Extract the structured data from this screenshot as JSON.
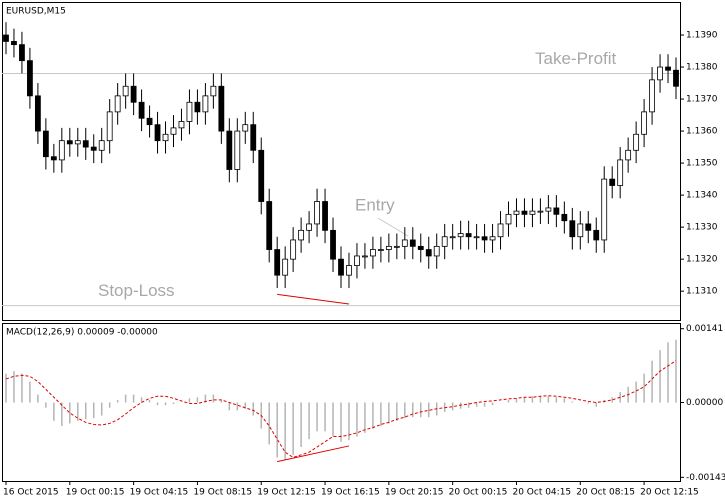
{
  "chart_data": [
    {
      "type": "candlestick",
      "title": "EURUSD,M15",
      "categories": [
        "16 Oct 2015",
        null,
        null,
        null,
        null,
        null,
        null,
        null,
        "19 Oct 00:15",
        null,
        null,
        null,
        null,
        null,
        null,
        null,
        "19 Oct 04:15",
        null,
        null,
        null,
        null,
        null,
        null,
        null,
        "19 Oct 08:15",
        null,
        null,
        null,
        null,
        null,
        null,
        null,
        "19 Oct 12:15",
        null,
        null,
        null,
        null,
        null,
        null,
        null,
        "19 Oct 16:15",
        null,
        null,
        null,
        null,
        null,
        null,
        null,
        "19 Oct 20:15",
        null,
        null,
        null,
        null,
        null,
        null,
        null,
        "20 Oct 00:15",
        null,
        null,
        null,
        null,
        null,
        null,
        null,
        "20 Oct 04:15",
        null,
        null,
        null,
        null,
        null,
        null,
        null,
        "20 Oct 08:15",
        null,
        null,
        null,
        null,
        null,
        null,
        null,
        "20 Oct 12:15",
        null,
        null,
        null,
        null
      ],
      "open": [
        1.139,
        1.1388,
        1.1387,
        1.1382,
        1.1371,
        1.136,
        1.1352,
        1.1351,
        1.1357,
        1.1356,
        1.1357,
        1.1355,
        1.1354,
        1.1357,
        1.1366,
        1.1371,
        1.1374,
        1.1369,
        1.1364,
        1.1362,
        1.1357,
        1.1359,
        1.1361,
        1.1363,
        1.1369,
        1.1366,
        1.1371,
        1.1374,
        1.136,
        1.1348,
        1.136,
        1.1362,
        1.1354,
        1.1338,
        1.1323,
        1.1315,
        1.132,
        1.1326,
        1.1329,
        1.1331,
        1.1338,
        1.1329,
        1.132,
        1.1315,
        1.1318,
        1.1321,
        1.1321,
        1.1323,
        1.1323,
        1.1324,
        1.1324,
        1.1326,
        1.1324,
        1.1323,
        1.1321,
        1.1324,
        1.1327,
        1.1327,
        1.1328,
        1.1327,
        1.1327,
        1.1326,
        1.1327,
        1.1331,
        1.1334,
        1.1335,
        1.1334,
        1.1335,
        1.1335,
        1.1336,
        1.1334,
        1.1332,
        1.1327,
        1.1331,
        1.1329,
        1.1326,
        1.1345,
        1.1343,
        1.1351,
        1.1354,
        1.1359,
        1.1366,
        1.1376,
        1.138,
        1.1379
      ],
      "high": [
        1.1394,
        1.1392,
        1.1391,
        1.1386,
        1.1375,
        1.1364,
        1.1356,
        1.1361,
        1.1361,
        1.1361,
        1.1361,
        1.1359,
        1.1361,
        1.137,
        1.1375,
        1.1378,
        1.1378,
        1.1373,
        1.1368,
        1.1366,
        1.1363,
        1.1365,
        1.1367,
        1.1373,
        1.1373,
        1.1375,
        1.1378,
        1.1378,
        1.1364,
        1.1364,
        1.1366,
        1.1366,
        1.1358,
        1.1342,
        1.1327,
        1.1324,
        1.133,
        1.1333,
        1.1335,
        1.1342,
        1.1342,
        1.1333,
        1.1324,
        1.1322,
        1.1325,
        1.1325,
        1.1327,
        1.1327,
        1.1328,
        1.1328,
        1.133,
        1.133,
        1.1328,
        1.1327,
        1.1328,
        1.1331,
        1.1331,
        1.1332,
        1.1332,
        1.1331,
        1.1331,
        1.1331,
        1.1335,
        1.1338,
        1.1339,
        1.1339,
        1.1339,
        1.1339,
        1.134,
        1.134,
        1.1338,
        1.1336,
        1.1335,
        1.1335,
        1.1333,
        1.1349,
        1.1349,
        1.1355,
        1.1358,
        1.1363,
        1.137,
        1.138,
        1.1384,
        1.1384,
        1.1383
      ],
      "low": [
        1.1384,
        1.1383,
        1.1378,
        1.1367,
        1.1356,
        1.1348,
        1.1347,
        1.1347,
        1.1352,
        1.1352,
        1.1351,
        1.135,
        1.135,
        1.1353,
        1.1362,
        1.1367,
        1.1365,
        1.136,
        1.1358,
        1.1353,
        1.1353,
        1.1355,
        1.1357,
        1.1359,
        1.1362,
        1.1362,
        1.1367,
        1.1356,
        1.1344,
        1.1344,
        1.1356,
        1.135,
        1.1334,
        1.1319,
        1.1311,
        1.1311,
        1.1316,
        1.1322,
        1.1325,
        1.1327,
        1.1325,
        1.1316,
        1.1311,
        1.1311,
        1.1314,
        1.1317,
        1.1317,
        1.1319,
        1.1319,
        1.132,
        1.132,
        1.132,
        1.1319,
        1.1317,
        1.1317,
        1.132,
        1.1323,
        1.1323,
        1.1323,
        1.1323,
        1.1322,
        1.1322,
        1.1323,
        1.1327,
        1.133,
        1.133,
        1.133,
        1.1331,
        1.1331,
        1.133,
        1.1328,
        1.1323,
        1.1323,
        1.1325,
        1.1322,
        1.1322,
        1.1339,
        1.1339,
        1.1347,
        1.135,
        1.1355,
        1.1362,
        1.1372,
        1.1375,
        1.137
      ],
      "close": [
        1.1388,
        1.1387,
        1.1382,
        1.1371,
        1.136,
        1.1352,
        1.1351,
        1.1357,
        1.1356,
        1.1357,
        1.1355,
        1.1354,
        1.1357,
        1.1366,
        1.1371,
        1.1374,
        1.1369,
        1.1364,
        1.1362,
        1.1357,
        1.1359,
        1.1361,
        1.1363,
        1.1369,
        1.1366,
        1.1371,
        1.1374,
        1.136,
        1.1348,
        1.136,
        1.1362,
        1.1354,
        1.1338,
        1.1323,
        1.1315,
        1.132,
        1.1326,
        1.1329,
        1.1331,
        1.1338,
        1.1329,
        1.132,
        1.1315,
        1.1318,
        1.1321,
        1.1321,
        1.1323,
        1.1323,
        1.1324,
        1.1324,
        1.1326,
        1.1324,
        1.1323,
        1.1321,
        1.1324,
        1.1327,
        1.1327,
        1.1328,
        1.1327,
        1.1327,
        1.1326,
        1.1327,
        1.1331,
        1.1334,
        1.1335,
        1.1334,
        1.1335,
        1.1335,
        1.1336,
        1.1334,
        1.1332,
        1.1327,
        1.1331,
        1.1329,
        1.1326,
        1.1345,
        1.1343,
        1.1351,
        1.1354,
        1.1359,
        1.1366,
        1.1376,
        1.138,
        1.1379,
        1.1374
      ],
      "up_color": "#ffffff",
      "down_color": "#000000",
      "ylim": [
        1.1301,
        1.14
      ],
      "yticks": [
        {
          "value": 1.139,
          "label": "1.1390"
        },
        {
          "value": 1.138,
          "label": "1.1380"
        },
        {
          "value": 1.137,
          "label": "1.1370"
        },
        {
          "value": 1.136,
          "label": "1.1360"
        },
        {
          "value": 1.135,
          "label": "1.1350"
        },
        {
          "value": 1.134,
          "label": "1.1340"
        },
        {
          "value": 1.133,
          "label": "1.1330"
        },
        {
          "value": 1.132,
          "label": "1.1320"
        },
        {
          "value": 1.131,
          "label": "1.1310"
        }
      ],
      "annotations": [
        {
          "text": "Take-Profit",
          "y": 1.1378
        },
        {
          "text": "Entry"
        },
        {
          "text": "Stop-Loss",
          "y": 1.13055
        }
      ],
      "trendlines": [
        {
          "color": "#e00000",
          "x": [
            34,
            43
          ],
          "y": [
            1.1309,
            1.1306
          ]
        }
      ]
    },
    {
      "type": "macd",
      "title": "MACD(12,26,9) 0.00009 -0.00000",
      "series": [
        {
          "color": "#b4b4b4",
          "values": [
            0.00055,
            0.0006,
            0.00055,
            0.0004,
            0.00015,
            -0.0001,
            -0.00035,
            -0.00045,
            -0.0004,
            -0.00035,
            -0.00032,
            -0.0003,
            -0.00025,
            -0.0001,
            5e-05,
            0.00015,
            0.00015,
            0.0001,
            5e-05,
            -5e-05,
            -5e-05,
            -3e-05,
            0,
            8e-05,
            0.0001,
            0.00015,
            0.00015,
            5e-05,
            -0.00015,
            -0.00015,
            -0.00012,
            -0.00025,
            -0.0005,
            -0.0008,
            -0.00105,
            -0.0011,
            -0.001,
            -0.00085,
            -0.0007,
            -0.00055,
            -0.00055,
            -0.00065,
            -0.00075,
            -0.00072,
            -0.00065,
            -0.00058,
            -0.0005,
            -0.00045,
            -0.0004,
            -0.00035,
            -0.0003,
            -0.00028,
            -0.00028,
            -0.00028,
            -0.00025,
            -0.00018,
            -0.00015,
            -0.00012,
            -0.0001,
            -8e-05,
            -8e-05,
            -5e-05,
            0,
            5e-05,
            8e-05,
            0.0001,
            0.00012,
            0.00012,
            0.00012,
            0.0001,
            8e-05,
            2e-05,
            0,
            -2e-05,
            -8e-05,
            5e-05,
            0.0001,
            0.0002,
            0.0003,
            0.0004,
            0.00055,
            0.0008,
            0.001,
            0.00115,
            0.0012
          ]
        },
        {
          "color": "#e00000",
          "values": [
            0.00045,
            0.0005,
            0.00052,
            0.0005,
            0.0004,
            0.00025,
            0.0001,
            -5e-05,
            -0.0002,
            -0.0003,
            -0.00038,
            -0.00042,
            -0.00043,
            -0.0004,
            -0.00033,
            -0.00022,
            -0.0001,
            0,
            8e-05,
            0.00012,
            0.00012,
            8e-05,
            3e-05,
            -2e-05,
            -2e-05,
            2e-05,
            5e-05,
            5e-05,
            0,
            -5e-05,
            -0.0001,
            -0.00015,
            -0.00025,
            -0.00045,
            -0.0007,
            -0.00095,
            -0.00105,
            -0.001,
            -0.00095,
            -0.00085,
            -0.00075,
            -0.00065,
            -0.00065,
            -0.00062,
            -0.00058,
            -0.00052,
            -0.00048,
            -0.00042,
            -0.00038,
            -0.00032,
            -0.00028,
            -0.00022,
            -0.00018,
            -0.00015,
            -0.00012,
            -0.0001,
            -8e-05,
            -5e-05,
            -3e-05,
            0,
            2e-05,
            3e-05,
            5e-05,
            7e-05,
            8e-05,
            0.0001,
            0.0001,
            0.00012,
            0.00013,
            0.00012,
            0.0001,
            8e-05,
            5e-05,
            2e-05,
            0,
            2e-05,
            5e-05,
            0.0001,
            0.00015,
            0.00022,
            0.0003,
            0.00045,
            0.0006,
            0.0007,
            0.0008
          ]
        }
      ],
      "ylim": [
        -0.0015,
        0.0015
      ],
      "yticks": [
        0.00141,
        {
          "value": 0,
          "label": "0.00000"
        },
        -0.00143
      ],
      "trendlines": [
        {
          "color": "#e00000",
          "x": [
            34,
            43
          ],
          "y": [
            -0.00113,
            -0.00083
          ]
        }
      ]
    }
  ]
}
